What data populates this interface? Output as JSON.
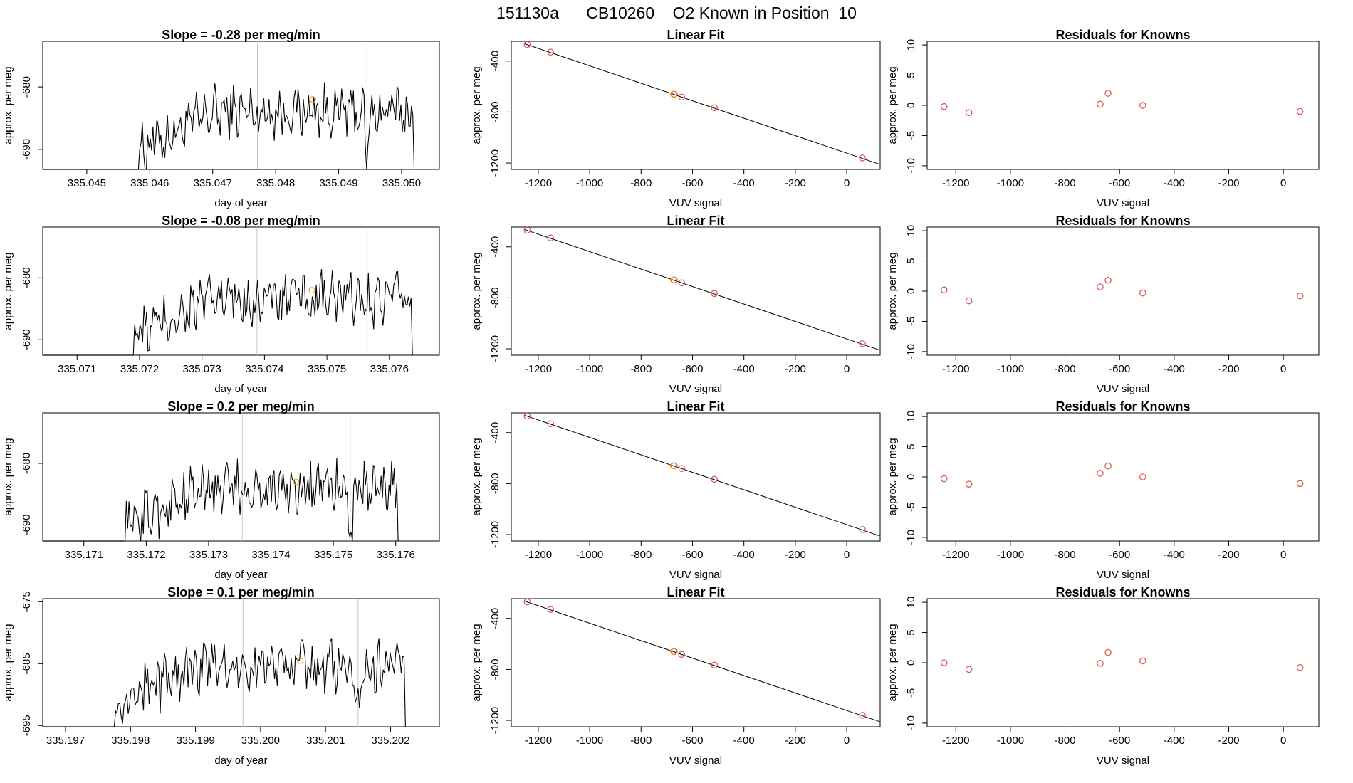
{
  "header": {
    "title": "151130a      CB10260    O2 Known in Position  10"
  },
  "colors": {
    "line": "#000000",
    "known": "#d9534f",
    "highlight": "#f0a030",
    "vline": "#c8c8c8"
  },
  "chart_data": [
    {
      "row": 1,
      "type": "line",
      "title": "Slope =  -0.28  per meg/min",
      "xlabel": "day of year",
      "ylabel": "approx. per meg",
      "xlim": [
        335.0443,
        335.0506
      ],
      "ylim": [
        -693.2,
        -672.7
      ],
      "xticks": [
        "335.045",
        "335.046",
        "335.047",
        "335.048",
        "335.049",
        "335.050"
      ],
      "yticks": [
        "-680",
        "-690"
      ],
      "vlines": [
        335.04771,
        335.04945
      ],
      "series_start": 335.04582,
      "series_end": 335.05022,
      "base": -684.0,
      "highlight_point": [
        335.04859,
        -682.0
      ]
    },
    {
      "row": 1,
      "type": "scatter",
      "title": "Linear Fit",
      "xlabel": "VUV signal",
      "ylabel": "approx. per meg",
      "xlim": [
        -1305,
        130
      ],
      "ylim": [
        -1250,
        -245
      ],
      "xticks": [
        "-1200",
        "-1000",
        "-800",
        "-600",
        "-400",
        "-200",
        "0"
      ],
      "yticks": [
        "-400",
        "-800",
        "-1200"
      ],
      "fit_line": [
        [
          -1255,
          -263
        ],
        [
          128,
          -1210
        ]
      ],
      "points": [
        [
          -1243,
          -270
        ],
        [
          -1152,
          -330
        ],
        [
          -671,
          -660
        ],
        [
          -642,
          -682
        ],
        [
          -515,
          -766
        ],
        [
          61,
          -1160
        ]
      ],
      "highlight_points": [
        [
          -671,
          -660
        ]
      ]
    },
    {
      "row": 1,
      "type": "scatter",
      "title": "Residuals for Knowns",
      "xlabel": "VUV signal",
      "ylabel": "approx. per meg",
      "xlim": [
        -1305,
        130
      ],
      "ylim": [
        -10.6,
        10.6
      ],
      "xticks": [
        "-1200",
        "-1000",
        "-800",
        "-600",
        "-400",
        "-200",
        "0"
      ],
      "yticks": [
        "10",
        "5",
        "0",
        "-5",
        "-10"
      ],
      "points": [
        [
          -1243,
          -0.2
        ],
        [
          -1152,
          -1.2
        ],
        [
          -671,
          0.2
        ],
        [
          -642,
          2.0
        ],
        [
          -515,
          0.0
        ],
        [
          61,
          -1.0
        ]
      ]
    },
    {
      "row": 2,
      "type": "line",
      "title": "Slope =  -0.08  per meg/min",
      "xlabel": "day of year",
      "ylabel": "approx. per meg",
      "xlim": [
        335.07045,
        335.0768
      ],
      "ylim": [
        -692.5,
        -671.8
      ],
      "xticks": [
        "335.071",
        "335.072",
        "335.073",
        "335.074",
        "335.075",
        "335.076"
      ],
      "yticks": [
        "-680",
        "-690"
      ],
      "vlines": [
        335.07388,
        335.07564
      ],
      "series_start": 335.0719,
      "series_end": 335.07639,
      "base": -683.5,
      "highlight_point": [
        335.07476,
        -682.0
      ]
    },
    {
      "row": 2,
      "type": "scatter",
      "title": "Linear Fit",
      "xlabel": "VUV signal",
      "ylabel": "approx. per meg",
      "xlim": [
        -1305,
        130
      ],
      "ylim": [
        -1250,
        -245
      ],
      "xticks": [
        "-1200",
        "-1000",
        "-800",
        "-600",
        "-400",
        "-200",
        "0"
      ],
      "yticks": [
        "-400",
        "-800",
        "-1200"
      ],
      "fit_line": [
        [
          -1255,
          -263
        ],
        [
          128,
          -1210
        ]
      ],
      "points": [
        [
          -1243,
          -270
        ],
        [
          -1152,
          -330
        ],
        [
          -671,
          -660
        ],
        [
          -642,
          -682
        ],
        [
          -515,
          -766
        ],
        [
          61,
          -1160
        ]
      ],
      "highlight_points": [
        [
          -671,
          -660
        ]
      ]
    },
    {
      "row": 2,
      "type": "scatter",
      "title": "Residuals for Knowns",
      "xlabel": "VUV signal",
      "ylabel": "approx. per meg",
      "xlim": [
        -1305,
        130
      ],
      "ylim": [
        -10.6,
        10.6
      ],
      "xticks": [
        "-1200",
        "-1000",
        "-800",
        "-600",
        "-400",
        "-200",
        "0"
      ],
      "yticks": [
        "10",
        "5",
        "0",
        "-5",
        "-10"
      ],
      "points": [
        [
          -1243,
          0.2
        ],
        [
          -1152,
          -1.6
        ],
        [
          -671,
          0.7
        ],
        [
          -642,
          1.8
        ],
        [
          -515,
          -0.3
        ],
        [
          61,
          -0.8
        ]
      ]
    },
    {
      "row": 3,
      "type": "line",
      "title": "Slope =  0.2  per meg/min",
      "xlabel": "day of year",
      "ylabel": "approx. per meg",
      "xlim": [
        335.17034,
        335.1767
      ],
      "ylim": [
        -692.6,
        -671.8
      ],
      "xticks": [
        "335.171",
        "335.172",
        "335.173",
        "335.174",
        "335.175",
        "335.176"
      ],
      "yticks": [
        "-680",
        "-690"
      ],
      "vlines": [
        335.17354,
        335.17527
      ],
      "series_start": 335.17166,
      "series_end": 335.17606,
      "base": -684.0,
      "highlight_point": [
        335.1744,
        -683.0
      ]
    },
    {
      "row": 3,
      "type": "scatter",
      "title": "Linear Fit",
      "xlabel": "VUV signal",
      "ylabel": "approx. per meg",
      "xlim": [
        -1305,
        130
      ],
      "ylim": [
        -1250,
        -245
      ],
      "xticks": [
        "-1200",
        "-1000",
        "-800",
        "-600",
        "-400",
        "-200",
        "0"
      ],
      "yticks": [
        "-400",
        "-800",
        "-1200"
      ],
      "fit_line": [
        [
          -1255,
          -263
        ],
        [
          128,
          -1210
        ]
      ],
      "points": [
        [
          -1243,
          -270
        ],
        [
          -1152,
          -330
        ],
        [
          -671,
          -660
        ],
        [
          -642,
          -682
        ],
        [
          -515,
          -766
        ],
        [
          61,
          -1160
        ]
      ],
      "highlight_points": [
        [
          -671,
          -660
        ]
      ]
    },
    {
      "row": 3,
      "type": "scatter",
      "title": "Residuals for Knowns",
      "xlabel": "VUV signal",
      "ylabel": "approx. per meg",
      "xlim": [
        -1305,
        130
      ],
      "ylim": [
        -10.6,
        10.6
      ],
      "xticks": [
        "-1200",
        "-1000",
        "-800",
        "-600",
        "-400",
        "-200",
        "0"
      ],
      "yticks": [
        "10",
        "5",
        "0",
        "-5",
        "-10"
      ],
      "points": [
        [
          -1243,
          -0.3
        ],
        [
          -1152,
          -1.2
        ],
        [
          -671,
          0.6
        ],
        [
          -642,
          1.8
        ],
        [
          -515,
          0.0
        ],
        [
          61,
          -1.1
        ]
      ]
    },
    {
      "row": 4,
      "type": "line",
      "title": "Slope =  0.1  per meg/min",
      "xlabel": "day of year",
      "ylabel": "approx. per meg",
      "xlim": [
        335.19665,
        335.20275
      ],
      "ylim": [
        -695.2,
        -674.5
      ],
      "xticks": [
        "335.197",
        "335.198",
        "335.199",
        "335.200",
        "335.201",
        "335.202"
      ],
      "yticks": [
        "-675",
        "-685",
        "-695"
      ],
      "vlines": [
        335.19973,
        335.2015
      ],
      "series_start": 335.19775,
      "series_end": 335.20225,
      "base": -685.5,
      "highlight_point": [
        335.20061,
        -684.5
      ]
    },
    {
      "row": 4,
      "type": "scatter",
      "title": "Linear Fit",
      "xlabel": "VUV signal",
      "ylabel": "approx. per meg",
      "xlim": [
        -1305,
        130
      ],
      "ylim": [
        -1250,
        -245
      ],
      "xticks": [
        "-1200",
        "-1000",
        "-800",
        "-600",
        "-400",
        "-200",
        "0"
      ],
      "yticks": [
        "-400",
        "-800",
        "-1200"
      ],
      "fit_line": [
        [
          -1255,
          -263
        ],
        [
          128,
          -1210
        ]
      ],
      "points": [
        [
          -1243,
          -270
        ],
        [
          -1152,
          -330
        ],
        [
          -671,
          -660
        ],
        [
          -642,
          -682
        ],
        [
          -515,
          -766
        ],
        [
          61,
          -1160
        ]
      ],
      "highlight_points": [
        [
          -671,
          -660
        ]
      ]
    },
    {
      "row": 4,
      "type": "scatter",
      "title": "Residuals for Knowns",
      "xlabel": "VUV signal",
      "ylabel": "approx. per meg",
      "xlim": [
        -1305,
        130
      ],
      "ylim": [
        -10.6,
        10.6
      ],
      "xticks": [
        "-1200",
        "-1000",
        "-800",
        "-600",
        "-400",
        "-200",
        "0"
      ],
      "yticks": [
        "10",
        "5",
        "0",
        "-5",
        "-10"
      ],
      "points": [
        [
          -1243,
          0.0
        ],
        [
          -1152,
          -1.1
        ],
        [
          -671,
          -0.1
        ],
        [
          -642,
          1.7
        ],
        [
          -515,
          0.3
        ],
        [
          61,
          -0.8
        ]
      ]
    }
  ]
}
